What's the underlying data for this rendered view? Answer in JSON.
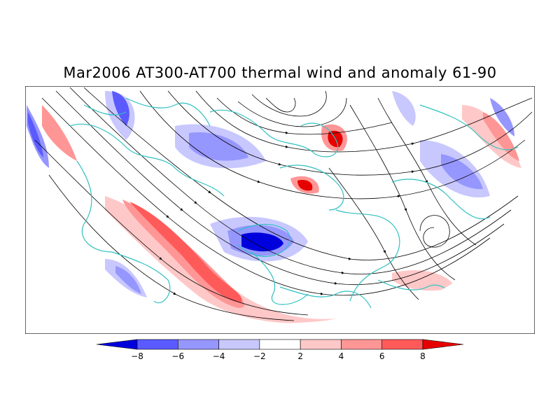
{
  "title": "Mar2006 AT300-AT700 thermal wind and anomaly 61-90",
  "colorbar": {
    "tick_labels": [
      "-8",
      "-6",
      "-4",
      "-2",
      "2",
      "4",
      "6",
      "8"
    ],
    "colors": [
      "#0000dc",
      "#5a5aff",
      "#9696ff",
      "#c8c8ff",
      "#ffffff",
      "#ffc8c8",
      "#ff9696",
      "#ff5a5a",
      "#e60000"
    ]
  },
  "map": {
    "projection": "north-polar stereographic half-disk",
    "coastline_color": "#30c0c0",
    "streamline_color": "#000000",
    "frame_color": "#000000"
  }
}
